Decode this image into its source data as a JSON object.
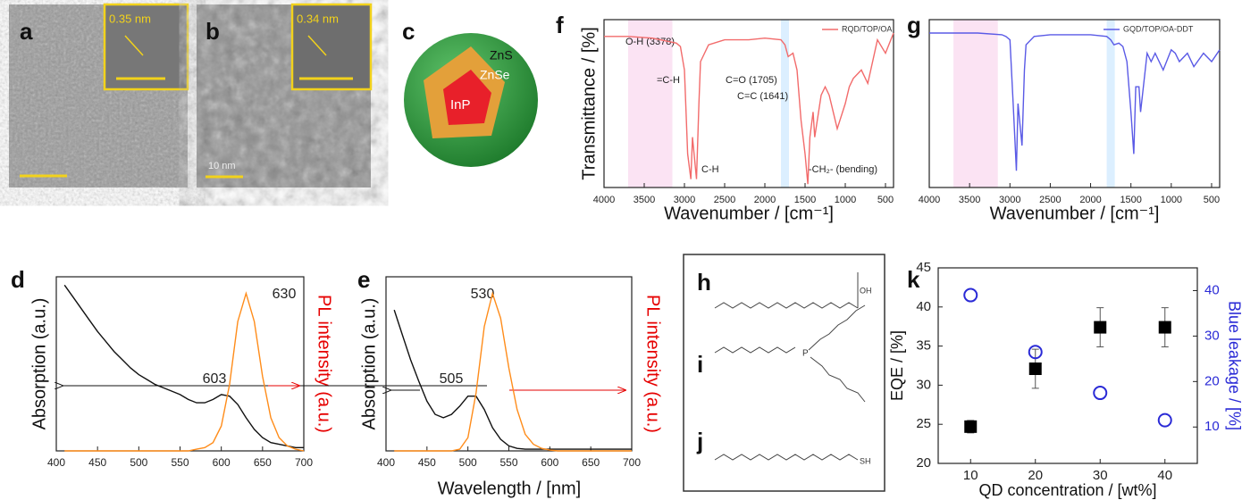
{
  "images": [
    {
      "panel": "a",
      "inset_label": "0.35 nm"
    },
    {
      "panel": "b",
      "inset_label": "0.34 nm",
      "scale_label": "10 nm"
    }
  ],
  "diagram": {
    "panel": "c",
    "layers": [
      "ZnS",
      "ZnSe",
      "InP"
    ]
  },
  "structures": {
    "panels": [
      "h",
      "i",
      "j"
    ],
    "atoms": [
      "OH",
      "P",
      "SH"
    ]
  },
  "chart_data": [
    {
      "type": "line",
      "panel": "d",
      "ylabel": "Absorption (a.u.)",
      "y2label": "PL intensity (a.u.)",
      "y2label_color": "#e60000",
      "annotations": [
        "630",
        "603"
      ],
      "x": [
        410,
        420,
        430,
        440,
        450,
        460,
        470,
        480,
        490,
        500,
        510,
        520,
        530,
        540,
        550,
        560,
        570,
        580,
        590,
        600,
        610,
        620,
        630,
        640,
        650,
        660,
        670,
        680,
        690,
        700
      ],
      "series": [
        {
          "color": "#111111",
          "values": [
            1.0,
            0.93,
            0.86,
            0.79,
            0.72,
            0.66,
            0.6,
            0.55,
            0.5,
            0.46,
            0.43,
            0.4,
            0.38,
            0.36,
            0.34,
            0.31,
            0.29,
            0.29,
            0.31,
            0.34,
            0.33,
            0.28,
            0.2,
            0.13,
            0.08,
            0.05,
            0.04,
            0.03,
            0.02,
            0.02
          ]
        },
        {
          "color": "#ff8c1a",
          "values": [
            0,
            0,
            0,
            0,
            0,
            0,
            0,
            0,
            0,
            0,
            0,
            0,
            0,
            0,
            0,
            0,
            0.01,
            0.02,
            0.05,
            0.15,
            0.4,
            0.78,
            0.95,
            0.78,
            0.45,
            0.2,
            0.08,
            0.03,
            0.01,
            0
          ]
        }
      ],
      "xlim": [
        400,
        700
      ],
      "xticks": [
        400,
        450,
        500,
        550,
        600,
        650,
        700
      ],
      "ylim": [
        0,
        1.05
      ]
    },
    {
      "type": "line",
      "panel": "e",
      "xlabel": "Wavelength / [nm]",
      "ylabel": "Absorption (a.u.)",
      "y2label": "PL intensity (a.u.)",
      "y2label_color": "#e60000",
      "annotations": [
        "530",
        "505"
      ],
      "x": [
        410,
        420,
        430,
        440,
        450,
        460,
        470,
        480,
        490,
        500,
        510,
        520,
        530,
        540,
        550,
        560,
        570,
        580,
        590,
        600,
        610,
        620,
        630,
        640,
        650,
        660,
        670,
        680,
        690,
        700
      ],
      "series": [
        {
          "color": "#111111",
          "values": [
            0.85,
            0.7,
            0.55,
            0.42,
            0.3,
            0.22,
            0.2,
            0.22,
            0.27,
            0.33,
            0.33,
            0.25,
            0.14,
            0.07,
            0.03,
            0.015,
            0.01,
            0.01,
            0.01,
            0.01,
            0.01,
            0.01,
            0.01,
            0.01,
            0.01,
            0.01,
            0.01,
            0.01,
            0.01,
            0.01
          ]
        },
        {
          "color": "#ff8c1a",
          "values": [
            0,
            0,
            0,
            0,
            0,
            0,
            0,
            0,
            0.01,
            0.08,
            0.35,
            0.75,
            0.95,
            0.8,
            0.5,
            0.25,
            0.1,
            0.04,
            0.015,
            0.005,
            0,
            0,
            0,
            0,
            0,
            0,
            0,
            0,
            0,
            0
          ]
        }
      ],
      "xlim": [
        400,
        700
      ],
      "xticks": [
        400,
        450,
        500,
        550,
        600,
        650,
        700
      ],
      "ylim": [
        0,
        1.05
      ]
    },
    {
      "type": "line",
      "panel": "f",
      "xlabel": "Wavenumber / [cm⁻¹]",
      "ylabel": "Transmittance / [%]",
      "legend": "upper right",
      "annotations": [
        "O-H (3378)",
        "=C-H",
        "C=O (1705)",
        "C=C (1641)",
        "C-H",
        "-CH₂- (bending)"
      ],
      "bands": [
        {
          "range": [
            3700,
            3150
          ],
          "color": "#fbe3f3"
        },
        {
          "range": [
            1800,
            1700
          ],
          "color": "#dcefff"
        }
      ],
      "x": [
        4000,
        3700,
        3400,
        3100,
        3050,
        3000,
        2960,
        2920,
        2900,
        2850,
        2820,
        2800,
        2700,
        2500,
        2200,
        2000,
        1800,
        1750,
        1710,
        1650,
        1600,
        1550,
        1500,
        1465,
        1440,
        1400,
        1380,
        1300,
        1250,
        1200,
        1100,
        1000,
        950,
        900,
        800,
        720,
        600,
        500,
        400
      ],
      "series": [
        {
          "name": "RQD/TOP/OA",
          "color": "#f26b6b",
          "values": [
            0.9,
            0.9,
            0.89,
            0.86,
            0.84,
            0.7,
            0.2,
            0.05,
            0.3,
            0.05,
            0.5,
            0.75,
            0.85,
            0.88,
            0.88,
            0.89,
            0.88,
            0.85,
            0.78,
            0.8,
            0.7,
            0.4,
            0.2,
            0.02,
            0.3,
            0.45,
            0.3,
            0.55,
            0.6,
            0.55,
            0.35,
            0.5,
            0.6,
            0.65,
            0.7,
            0.62,
            0.88,
            0.8,
            0.92
          ]
        }
      ],
      "xlim": [
        4000,
        400
      ],
      "xticks": [
        4000,
        3500,
        3000,
        2500,
        2000,
        1500,
        1000,
        500
      ],
      "ylim": [
        0,
        1
      ]
    },
    {
      "type": "line",
      "panel": "g",
      "xlabel": "Wavenumber / [cm⁻¹]",
      "legend": "upper right",
      "bands": [
        {
          "range": [
            3700,
            3150
          ],
          "color": "#fbe3f3"
        },
        {
          "range": [
            1800,
            1700
          ],
          "color": "#dcefff"
        }
      ],
      "x": [
        4000,
        3700,
        3400,
        3100,
        3050,
        3000,
        2960,
        2920,
        2900,
        2850,
        2820,
        2800,
        2700,
        2500,
        2200,
        2000,
        1800,
        1750,
        1710,
        1650,
        1600,
        1550,
        1500,
        1465,
        1440,
        1400,
        1380,
        1300,
        1250,
        1200,
        1100,
        1000,
        950,
        900,
        800,
        720,
        600,
        500,
        400
      ],
      "series": [
        {
          "name": "GQD/TOP/OA-DDT",
          "color": "#5a5ae6",
          "values": [
            0.92,
            0.92,
            0.92,
            0.91,
            0.9,
            0.88,
            0.5,
            0.1,
            0.5,
            0.25,
            0.7,
            0.85,
            0.9,
            0.91,
            0.91,
            0.91,
            0.9,
            0.88,
            0.85,
            0.86,
            0.84,
            0.75,
            0.45,
            0.2,
            0.6,
            0.6,
            0.45,
            0.8,
            0.75,
            0.8,
            0.7,
            0.82,
            0.8,
            0.75,
            0.8,
            0.72,
            0.8,
            0.75,
            0.82
          ]
        }
      ],
      "xlim": [
        4000,
        400
      ],
      "xticks": [
        4000,
        3500,
        3000,
        2500,
        2000,
        1500,
        1000,
        500
      ],
      "ylim": [
        0,
        1
      ]
    },
    {
      "type": "scatter",
      "panel": "k",
      "xlabel": "QD concentration / [wt%]",
      "ylabel": "EQE / [%]",
      "y2label": "Blue leakage / [%]",
      "y2label_color": "#2a2ad6",
      "x": [
        10,
        20,
        30,
        40
      ],
      "series": [
        {
          "color": "#000000",
          "marker": "square",
          "values": [
            24.7,
            32.1,
            37.4,
            37.4
          ],
          "errors": [
            0.8,
            2.5,
            2.5,
            2.5
          ]
        },
        {
          "color": "#2a2ad6",
          "marker": "circle",
          "axis": "y2",
          "values": [
            39,
            26.5,
            17.5,
            11.5
          ]
        }
      ],
      "xlim": [
        5,
        45
      ],
      "xticks": [
        10,
        20,
        30,
        40
      ],
      "ylim": [
        20,
        45
      ],
      "yticks": [
        20,
        25,
        30,
        35,
        40,
        45
      ],
      "y2lim": [
        2,
        45
      ],
      "y2ticks": [
        10,
        20,
        30,
        40
      ]
    }
  ]
}
